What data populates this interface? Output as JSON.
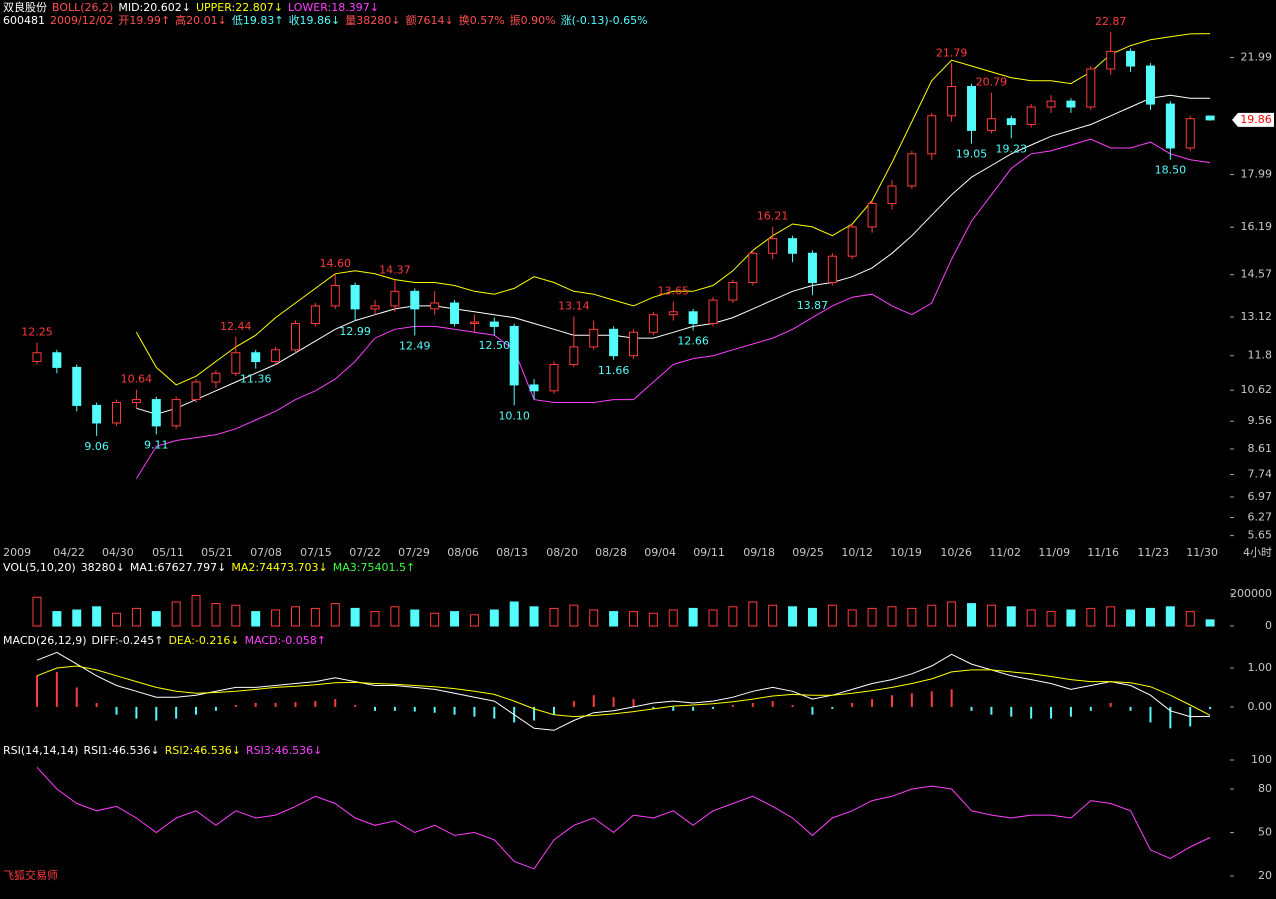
{
  "chart_data": [
    {
      "type": "candlestick",
      "header": [
        [
          {
            "text": "双良股份",
            "color": "#ffffff"
          },
          {
            "text": "BOLL(26,2)",
            "color": "#ff5050"
          },
          {
            "text": "MID:20.602↓",
            "color": "#ffffff"
          },
          {
            "text": "UPPER:22.807↓",
            "color": "#ffff00"
          },
          {
            "text": "LOWER:18.397↓",
            "color": "#ff40ff"
          }
        ],
        [
          {
            "text": "600481",
            "color": "#ffffff"
          },
          {
            "text": "2009/12/02",
            "color": "#ff5050"
          },
          {
            "text": "开19.99↑",
            "color": "#ff5050"
          },
          {
            "text": "高20.01↓",
            "color": "#ff5050"
          },
          {
            "text": "低19.83↑",
            "color": "#54fcfc"
          },
          {
            "text": "收19.86↓",
            "color": "#54fcfc"
          },
          {
            "text": "量38280↓",
            "color": "#ff5050"
          },
          {
            "text": "额7614↓",
            "color": "#ff5050"
          },
          {
            "text": "换0.57%",
            "color": "#ff5050"
          },
          {
            "text": "振0.90%",
            "color": "#ff5050"
          },
          {
            "text": "涨(-0.13)-0.65%",
            "color": "#54fcfc"
          }
        ]
      ],
      "up_color": "#ff3c3c",
      "down_color": "#54fcfc",
      "xlim": [
        -1.86,
        60.0
      ],
      "xticks": [
        {
          "value": -1.0,
          "label": "2009"
        },
        {
          "value": 1.61,
          "label": "04/22"
        },
        {
          "value": 4.07,
          "label": "04/30"
        },
        {
          "value": 6.59,
          "label": "05/11"
        },
        {
          "value": 9.05,
          "label": "05/21"
        },
        {
          "value": 11.52,
          "label": "07/08"
        },
        {
          "value": 14.03,
          "label": "07/15"
        },
        {
          "value": 16.5,
          "label": "07/22"
        },
        {
          "value": 18.96,
          "label": "07/29"
        },
        {
          "value": 21.43,
          "label": "08/06"
        },
        {
          "value": 23.89,
          "label": "08/13"
        },
        {
          "value": 26.41,
          "label": "08/20"
        },
        {
          "value": 28.87,
          "label": "08/28"
        },
        {
          "value": 31.34,
          "label": "09/04"
        },
        {
          "value": 33.8,
          "label": "09/11"
        },
        {
          "value": 36.32,
          "label": "09/18"
        },
        {
          "value": 38.78,
          "label": "09/25"
        },
        {
          "value": 41.25,
          "label": "10/12"
        },
        {
          "value": 43.71,
          "label": "10/19"
        },
        {
          "value": 46.23,
          "label": "10/26"
        },
        {
          "value": 48.69,
          "label": "11/02"
        },
        {
          "value": 51.16,
          "label": "11/09"
        },
        {
          "value": 53.62,
          "label": "11/16"
        },
        {
          "value": 56.14,
          "label": "11/23"
        },
        {
          "value": 58.6,
          "label": "11/30"
        }
      ],
      "period": "4小时",
      "ylim": [
        5.5,
        23.0
      ],
      "yticks": [
        21.99,
        17.99,
        16.19,
        14.57,
        13.12,
        11.8,
        10.62,
        9.56,
        8.61,
        7.74,
        6.97,
        6.27,
        5.65
      ],
      "last_price": 19.86,
      "open": [
        11.6,
        11.9,
        11.4,
        10.1,
        9.5,
        10.2,
        10.3,
        9.4,
        10.3,
        10.9,
        11.2,
        11.9,
        11.6,
        12.0,
        12.9,
        13.5,
        14.2,
        13.4,
        13.5,
        14.0,
        13.4,
        13.6,
        12.9,
        12.95,
        12.8,
        10.8,
        10.6,
        11.5,
        12.1,
        12.7,
        11.8,
        12.6,
        13.2,
        13.3,
        12.9,
        13.7,
        14.3,
        15.3,
        15.8,
        15.3,
        14.3,
        15.2,
        16.2,
        17.0,
        17.6,
        18.7,
        20.0,
        21.0,
        19.5,
        19.9,
        19.7,
        20.3,
        20.5,
        20.3,
        21.6,
        22.2,
        21.7,
        20.4,
        18.9,
        19.99
      ],
      "high": [
        12.25,
        12.0,
        11.5,
        10.2,
        10.3,
        10.64,
        10.4,
        10.4,
        11.0,
        11.3,
        12.44,
        12.0,
        12.1,
        13.0,
        13.6,
        14.6,
        14.3,
        13.7,
        14.37,
        14.1,
        14.0,
        13.7,
        13.2,
        13.1,
        12.9,
        11.0,
        11.6,
        13.14,
        13.0,
        12.8,
        12.7,
        13.3,
        13.65,
        13.4,
        13.8,
        14.4,
        15.4,
        16.21,
        15.9,
        15.4,
        15.3,
        16.3,
        17.1,
        17.8,
        18.8,
        20.1,
        21.79,
        21.1,
        20.79,
        20.0,
        20.4,
        20.7,
        20.6,
        21.7,
        22.87,
        22.3,
        21.8,
        20.5,
        20.0,
        20.01
      ],
      "low": [
        11.5,
        11.2,
        9.9,
        9.06,
        9.4,
        10.0,
        9.11,
        9.3,
        10.2,
        10.7,
        11.1,
        11.36,
        11.5,
        11.9,
        12.8,
        13.4,
        12.99,
        13.2,
        13.3,
        12.49,
        13.2,
        12.8,
        12.6,
        12.5,
        10.1,
        10.3,
        10.5,
        11.4,
        12.0,
        11.66,
        11.7,
        12.5,
        13.0,
        12.66,
        12.8,
        13.6,
        14.2,
        15.1,
        15.0,
        13.87,
        14.2,
        15.1,
        16.0,
        16.8,
        17.5,
        18.5,
        19.8,
        19.05,
        19.4,
        19.23,
        19.6,
        20.1,
        20.1,
        20.2,
        21.4,
        21.5,
        20.2,
        18.5,
        18.8,
        19.83
      ],
      "close": [
        11.9,
        11.4,
        10.1,
        9.5,
        10.2,
        10.3,
        9.4,
        10.3,
        10.9,
        11.2,
        11.9,
        11.6,
        12.0,
        12.9,
        13.5,
        14.2,
        13.4,
        13.5,
        14.0,
        13.4,
        13.6,
        12.9,
        12.95,
        12.8,
        10.8,
        10.6,
        11.5,
        12.1,
        12.7,
        11.8,
        12.6,
        13.2,
        13.3,
        12.9,
        13.7,
        14.3,
        15.3,
        15.8,
        15.3,
        14.3,
        15.2,
        16.2,
        17.0,
        17.6,
        18.7,
        20.0,
        21.0,
        19.5,
        19.9,
        19.7,
        20.3,
        20.5,
        20.3,
        21.6,
        22.2,
        21.7,
        20.4,
        18.9,
        19.9,
        19.86
      ],
      "series": [
        {
          "color": "#ffffff",
          "values": [
            null,
            null,
            null,
            null,
            null,
            10.0,
            9.8,
            10.0,
            10.3,
            10.6,
            10.9,
            11.2,
            11.5,
            11.9,
            12.3,
            12.7,
            13.0,
            13.2,
            13.4,
            13.5,
            13.5,
            13.4,
            13.3,
            13.2,
            13.1,
            12.9,
            12.7,
            12.5,
            12.5,
            12.5,
            12.4,
            12.4,
            12.6,
            12.8,
            12.9,
            13.1,
            13.4,
            13.7,
            14.0,
            14.2,
            14.3,
            14.5,
            14.8,
            15.3,
            15.9,
            16.6,
            17.3,
            17.9,
            18.3,
            18.7,
            19.0,
            19.3,
            19.5,
            19.7,
            20.0,
            20.3,
            20.6,
            20.7,
            20.6,
            20.6
          ]
        },
        {
          "color": "#ffff00",
          "values": [
            null,
            null,
            null,
            null,
            null,
            12.6,
            11.4,
            10.8,
            11.1,
            11.6,
            12.1,
            12.5,
            13.1,
            13.6,
            14.1,
            14.6,
            14.7,
            14.6,
            14.4,
            14.3,
            14.3,
            14.2,
            14.0,
            13.9,
            14.1,
            14.5,
            14.3,
            14.0,
            13.9,
            13.7,
            13.5,
            13.8,
            14.0,
            14.0,
            14.2,
            14.7,
            15.4,
            15.9,
            16.3,
            16.2,
            15.9,
            16.3,
            17.1,
            18.4,
            19.8,
            21.2,
            21.9,
            21.7,
            21.5,
            21.3,
            21.2,
            21.2,
            21.1,
            21.5,
            22.1,
            22.4,
            22.6,
            22.7,
            22.8,
            22.81
          ]
        },
        {
          "color": "#ff40ff",
          "values": [
            null,
            null,
            null,
            null,
            null,
            7.6,
            8.7,
            8.9,
            9.0,
            9.1,
            9.3,
            9.6,
            9.9,
            10.3,
            10.6,
            11.0,
            11.6,
            12.4,
            12.7,
            12.8,
            12.8,
            12.7,
            12.6,
            12.5,
            12.0,
            10.3,
            10.2,
            10.2,
            10.2,
            10.3,
            10.3,
            10.9,
            11.5,
            11.7,
            11.8,
            12.0,
            12.2,
            12.4,
            12.7,
            13.1,
            13.5,
            13.8,
            13.9,
            13.5,
            13.2,
            13.6,
            15.1,
            16.4,
            17.3,
            18.2,
            18.7,
            18.8,
            19.0,
            19.2,
            18.9,
            18.9,
            19.1,
            18.7,
            18.5,
            18.4
          ]
        }
      ],
      "high_labels": [
        {
          "x": 0,
          "value": 12.25
        },
        {
          "x": 5,
          "value": 10.64
        },
        {
          "x": 10,
          "value": 12.44
        },
        {
          "x": 15,
          "value": 14.6,
          "label": "14.60"
        },
        {
          "x": 18,
          "value": 14.37
        },
        {
          "x": 27,
          "value": 13.14
        },
        {
          "x": 32,
          "value": 13.65
        },
        {
          "x": 37,
          "value": 16.21
        },
        {
          "x": 46,
          "value": 21.79
        },
        {
          "x": 48,
          "value": 20.79
        },
        {
          "x": 54,
          "value": 22.87
        }
      ],
      "low_labels": [
        {
          "x": 3,
          "value": 9.06
        },
        {
          "x": 6,
          "value": 9.11
        },
        {
          "x": 11,
          "value": 11.36
        },
        {
          "x": 16,
          "value": 12.99
        },
        {
          "x": 19,
          "value": 12.49
        },
        {
          "x": 23,
          "value": 12.5,
          "label": "12.50"
        },
        {
          "x": 24,
          "value": 10.1,
          "label": "10.10"
        },
        {
          "x": 29,
          "value": 11.66
        },
        {
          "x": 33,
          "value": 12.66
        },
        {
          "x": 39,
          "value": 13.87
        },
        {
          "x": 47,
          "value": 19.05
        },
        {
          "x": 49,
          "value": 19.23
        },
        {
          "x": 57,
          "value": 18.5,
          "label": "18.50"
        }
      ]
    },
    {
      "type": "bar",
      "header": [
        [
          {
            "text": "VOL(5,10,20)",
            "color": "#ffffff"
          },
          {
            "text": "38280↓",
            "color": "#ffffff"
          },
          {
            "text": "MA1:67627.797↓",
            "color": "#ffffff"
          },
          {
            "text": "MA2:74473.703↓",
            "color": "#ffff00"
          },
          {
            "text": "MA3:75401.5↑",
            "color": "#40ff40"
          }
        ]
      ],
      "ylim": [
        0,
        300000
      ],
      "yticks": [
        200000,
        0
      ],
      "values": [
        180000,
        90000,
        100000,
        120000,
        80000,
        110000,
        90000,
        150000,
        190000,
        140000,
        130000,
        90000,
        100000,
        120000,
        110000,
        140000,
        110000,
        90000,
        120000,
        100000,
        80000,
        90000,
        70000,
        100000,
        150000,
        120000,
        110000,
        130000,
        100000,
        90000,
        90000,
        80000,
        100000,
        110000,
        100000,
        120000,
        150000,
        130000,
        120000,
        110000,
        130000,
        100000,
        110000,
        120000,
        110000,
        130000,
        150000,
        140000,
        130000,
        120000,
        100000,
        90000,
        100000,
        110000,
        120000,
        100000,
        110000,
        120000,
        90000,
        38280
      ]
    },
    {
      "type": "macd",
      "header": [
        [
          {
            "text": "MACD(26,12,9)",
            "color": "#ffffff"
          },
          {
            "text": "DIFF:-0.245↑",
            "color": "#ffffff"
          },
          {
            "text": "DEA:-0.216↓",
            "color": "#ffff00"
          },
          {
            "text": "MACD:-0.058↑",
            "color": "#ff40ff"
          }
        ]
      ],
      "ylim": [
        -0.85,
        1.5
      ],
      "yticks": [
        {
          "value": 1,
          "label": "1.00"
        },
        {
          "value": 0,
          "label": "0.00"
        }
      ],
      "up_color": "#ff3c3c",
      "down_color": "#54fcfc",
      "histogram": [
        0.8,
        0.9,
        0.5,
        0.1,
        -0.2,
        -0.3,
        -0.35,
        -0.3,
        -0.2,
        -0.1,
        0.05,
        0.1,
        0.1,
        0.12,
        0.15,
        0.2,
        0.05,
        -0.1,
        -0.1,
        -0.12,
        -0.15,
        -0.2,
        -0.25,
        -0.3,
        -0.4,
        -0.35,
        -0.2,
        0.15,
        0.3,
        0.25,
        0.2,
        -0.05,
        -0.1,
        -0.1,
        -0.05,
        0.05,
        0.1,
        0.15,
        0.05,
        -0.2,
        -0.05,
        0.1,
        0.2,
        0.3,
        0.35,
        0.4,
        0.45,
        -0.1,
        -0.2,
        -0.25,
        -0.3,
        -0.3,
        -0.25,
        -0.1,
        0.1,
        -0.1,
        -0.4,
        -0.55,
        -0.5,
        -0.058
      ],
      "series": [
        {
          "color": "#ffffff",
          "values": [
            1.2,
            1.4,
            1.1,
            0.8,
            0.55,
            0.4,
            0.25,
            0.25,
            0.3,
            0.4,
            0.5,
            0.5,
            0.55,
            0.6,
            0.65,
            0.75,
            0.65,
            0.55,
            0.55,
            0.5,
            0.45,
            0.35,
            0.25,
            0.15,
            -0.2,
            -0.55,
            -0.6,
            -0.35,
            -0.15,
            -0.1,
            0.0,
            0.1,
            0.15,
            0.1,
            0.15,
            0.25,
            0.4,
            0.5,
            0.4,
            0.2,
            0.3,
            0.45,
            0.6,
            0.7,
            0.85,
            1.05,
            1.35,
            1.1,
            0.95,
            0.8,
            0.7,
            0.6,
            0.45,
            0.55,
            0.65,
            0.55,
            0.3,
            -0.1,
            -0.25,
            -0.245
          ]
        },
        {
          "color": "#ffff00",
          "values": [
            0.8,
            1.0,
            1.05,
            0.95,
            0.8,
            0.65,
            0.5,
            0.4,
            0.35,
            0.37,
            0.4,
            0.45,
            0.5,
            0.53,
            0.57,
            0.62,
            0.63,
            0.6,
            0.58,
            0.55,
            0.52,
            0.47,
            0.4,
            0.32,
            0.15,
            -0.05,
            -0.2,
            -0.25,
            -0.22,
            -0.18,
            -0.12,
            -0.05,
            0.02,
            0.05,
            0.08,
            0.13,
            0.2,
            0.28,
            0.32,
            0.3,
            0.3,
            0.35,
            0.42,
            0.5,
            0.6,
            0.72,
            0.9,
            0.95,
            0.95,
            0.9,
            0.85,
            0.78,
            0.7,
            0.65,
            0.65,
            0.62,
            0.52,
            0.3,
            0.05,
            -0.216
          ]
        }
      ]
    },
    {
      "type": "line",
      "header": [
        [
          {
            "text": "RSI(14,14,14)",
            "color": "#ffffff"
          },
          {
            "text": "RSI1:46.536↓",
            "color": "#ffffff"
          },
          {
            "text": "RSI2:46.536↓",
            "color": "#ffff00"
          },
          {
            "text": "RSI3:46.536↓",
            "color": "#ff40ff"
          }
        ]
      ],
      "ylim": [
        10,
        100
      ],
      "yticks": [
        100,
        80,
        50,
        20
      ],
      "series": [
        {
          "color": "#ff40ff",
          "values": [
            95,
            80,
            70,
            65,
            68,
            60,
            50,
            60,
            65,
            55,
            65,
            60,
            62,
            68,
            75,
            70,
            60,
            55,
            58,
            50,
            55,
            48,
            50,
            45,
            30,
            25,
            45,
            55,
            60,
            50,
            62,
            60,
            65,
            55,
            65,
            70,
            75,
            68,
            60,
            48,
            60,
            65,
            72,
            75,
            80,
            82,
            80,
            65,
            62,
            60,
            62,
            62,
            60,
            72,
            70,
            65,
            38,
            32,
            40,
            46.536
          ]
        }
      ]
    }
  ],
  "watermark": "飞狐交易师"
}
